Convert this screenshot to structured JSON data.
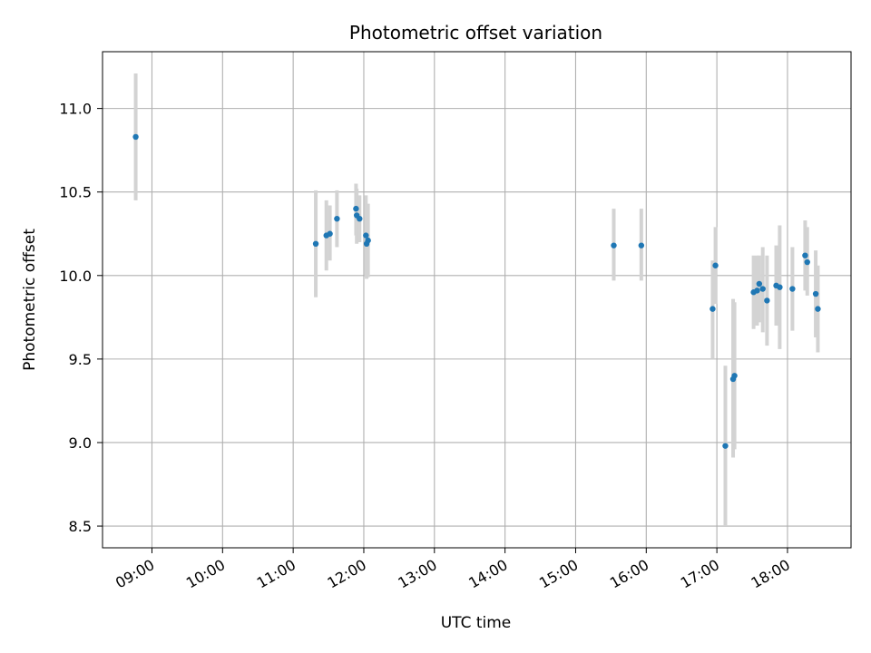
{
  "chart_data": {
    "type": "scatter",
    "title": "Photometric offset variation",
    "xlabel": "UTC time",
    "ylabel": "Photometric offset",
    "x_unit": "hours UTC",
    "xlim": [
      8.3,
      18.9
    ],
    "ylim": [
      8.37,
      11.34
    ],
    "grid": true,
    "x_ticks": [
      {
        "value": 9,
        "label": "09:00"
      },
      {
        "value": 10,
        "label": "10:00"
      },
      {
        "value": 11,
        "label": "11:00"
      },
      {
        "value": 12,
        "label": "12:00"
      },
      {
        "value": 13,
        "label": "13:00"
      },
      {
        "value": 14,
        "label": "14:00"
      },
      {
        "value": 15,
        "label": "15:00"
      },
      {
        "value": 16,
        "label": "16:00"
      },
      {
        "value": 17,
        "label": "17:00"
      },
      {
        "value": 18,
        "label": "18:00"
      }
    ],
    "y_ticks": [
      {
        "value": 8.5,
        "label": "8.5"
      },
      {
        "value": 9.0,
        "label": "9.0"
      },
      {
        "value": 9.5,
        "label": "9.5"
      },
      {
        "value": 10.0,
        "label": "10.0"
      },
      {
        "value": 10.5,
        "label": "10.5"
      },
      {
        "value": 11.0,
        "label": "11.0"
      }
    ],
    "colors": {
      "marker": "#1f77b4",
      "errorbar": "#d3d3d3",
      "grid": "#b0b0b0",
      "axes": "#000000"
    },
    "series": [
      {
        "points": [
          {
            "x": 8.77,
            "y": 10.83,
            "low": 10.45,
            "high": 11.21
          },
          {
            "x": 11.32,
            "y": 10.19,
            "low": 9.87,
            "high": 10.51
          },
          {
            "x": 11.47,
            "y": 10.24,
            "low": 10.03,
            "high": 10.45
          },
          {
            "x": 11.52,
            "y": 10.25,
            "low": 10.09,
            "high": 10.42
          },
          {
            "x": 11.62,
            "y": 10.34,
            "low": 10.17,
            "high": 10.51
          },
          {
            "x": 11.89,
            "y": 10.4,
            "low": 10.24,
            "high": 10.55
          },
          {
            "x": 11.9,
            "y": 10.36,
            "low": 10.19,
            "high": 10.52
          },
          {
            "x": 11.94,
            "y": 10.34,
            "low": 10.2,
            "high": 10.48
          },
          {
            "x": 12.03,
            "y": 10.24,
            "low": 10.0,
            "high": 10.48
          },
          {
            "x": 12.04,
            "y": 10.19,
            "low": 9.98,
            "high": 10.41
          },
          {
            "x": 12.06,
            "y": 10.21,
            "low": 9.99,
            "high": 10.43
          },
          {
            "x": 15.54,
            "y": 10.18,
            "low": 9.97,
            "high": 10.4
          },
          {
            "x": 15.93,
            "y": 10.18,
            "low": 9.97,
            "high": 10.4
          },
          {
            "x": 16.94,
            "y": 9.8,
            "low": 9.5,
            "high": 10.09
          },
          {
            "x": 16.98,
            "y": 10.06,
            "low": 9.83,
            "high": 10.29
          },
          {
            "x": 17.12,
            "y": 8.98,
            "low": 8.5,
            "high": 9.46
          },
          {
            "x": 17.23,
            "y": 9.38,
            "low": 8.91,
            "high": 9.86
          },
          {
            "x": 17.25,
            "y": 9.4,
            "low": 8.96,
            "high": 9.84
          },
          {
            "x": 17.52,
            "y": 9.9,
            "low": 9.68,
            "high": 10.12
          },
          {
            "x": 17.57,
            "y": 9.91,
            "low": 9.7,
            "high": 10.12
          },
          {
            "x": 17.6,
            "y": 9.95,
            "low": 9.72,
            "high": 10.12
          },
          {
            "x": 17.65,
            "y": 9.92,
            "low": 9.66,
            "high": 10.17
          },
          {
            "x": 17.71,
            "y": 9.85,
            "low": 9.58,
            "high": 10.12
          },
          {
            "x": 17.84,
            "y": 9.94,
            "low": 9.7,
            "high": 10.18
          },
          {
            "x": 17.89,
            "y": 9.93,
            "low": 9.56,
            "high": 10.3
          },
          {
            "x": 18.07,
            "y": 9.92,
            "low": 9.67,
            "high": 10.17
          },
          {
            "x": 18.25,
            "y": 10.12,
            "low": 9.91,
            "high": 10.33
          },
          {
            "x": 18.28,
            "y": 10.08,
            "low": 9.88,
            "high": 10.29
          },
          {
            "x": 18.4,
            "y": 9.89,
            "low": 9.63,
            "high": 10.15
          },
          {
            "x": 18.43,
            "y": 9.8,
            "low": 9.54,
            "high": 10.06
          }
        ]
      }
    ]
  }
}
